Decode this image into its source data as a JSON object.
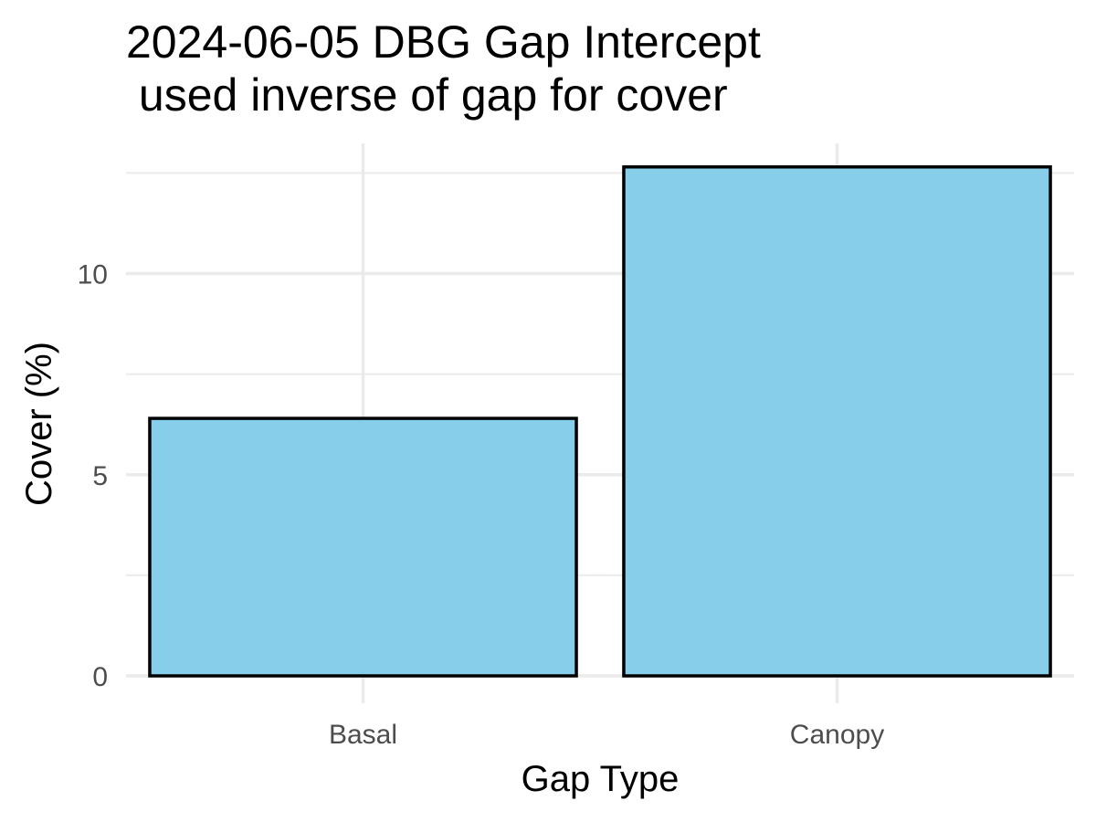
{
  "chart_data": {
    "type": "bar",
    "title_lines": [
      "2024-06-05 DBG Gap Intercept",
      " used inverse of gap for cover"
    ],
    "xlabel": "Gap Type",
    "ylabel": "Cover (%)",
    "categories": [
      "Basal",
      "Canopy"
    ],
    "values": [
      6.4,
      12.65
    ],
    "ylim": [
      0,
      13.3
    ],
    "yticks": [
      0,
      5,
      10
    ],
    "grid": true,
    "bar_fill": "#87CEEB",
    "bar_outline": "#000000",
    "grid_color": "#ebebeb"
  }
}
